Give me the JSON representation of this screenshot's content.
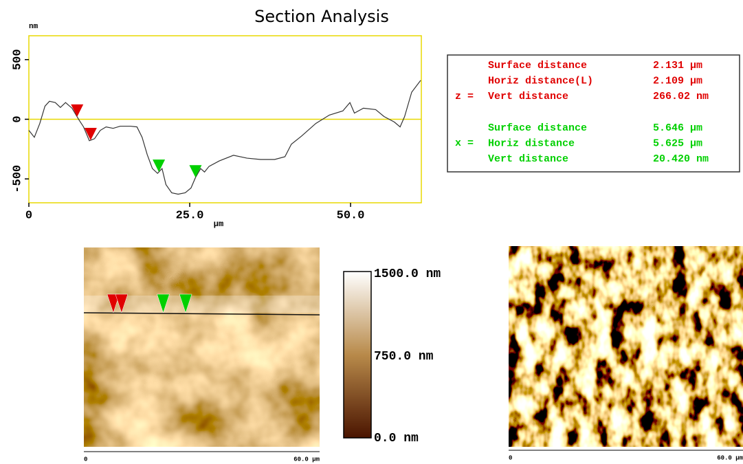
{
  "chart_data": {
    "type": "line",
    "title": "Section Analysis",
    "y_unit": "nm",
    "x_label": "µm",
    "xlim": [
      0,
      61
    ],
    "ylim": [
      -700,
      700
    ],
    "xticks": [
      0,
      {
        "value": 25,
        "label": "25.0"
      },
      {
        "value": 50,
        "label": "50.0"
      }
    ],
    "yticks": [
      -500,
      0,
      500
    ],
    "frame_color": "#e8d800",
    "zero_line_color": "#e8d800",
    "series": [
      {
        "color": "#333333",
        "x": [
          0,
          0.85,
          1.7,
          2.5,
          3.2,
          4.1,
          4.9,
          5.7,
          6.7,
          7.8,
          8.5,
          9.4,
          10.2,
          11.1,
          12.0,
          13.1,
          14.2,
          15.8,
          16.8,
          17.6,
          18.4,
          19.2,
          20.0,
          20.7,
          21.3,
          22.2,
          23.2,
          24.3,
          25.2,
          25.9,
          26.7,
          27.3,
          28.0,
          29.6,
          31.8,
          33.9,
          36.0,
          38.2,
          39.8,
          40.8,
          42.4,
          44.6,
          46.7,
          48.8,
          49.9,
          50.6,
          52.0,
          53.9,
          55.2,
          56.8,
          57.7,
          58.4,
          59.5,
          60.9
        ],
        "values": [
          -93,
          -151,
          -35,
          110,
          151,
          140,
          99,
          140,
          93,
          -6,
          -64,
          -180,
          -163,
          -93,
          -64,
          -76,
          -58,
          -58,
          -64,
          -151,
          -297,
          -413,
          -453,
          -413,
          -547,
          -616,
          -628,
          -616,
          -576,
          -488,
          -413,
          -442,
          -395,
          -349,
          -302,
          -326,
          -337,
          -337,
          -314,
          -209,
          -140,
          -35,
          35,
          70,
          140,
          52,
          93,
          81,
          23,
          -23,
          -64,
          23,
          227,
          326
        ]
      }
    ],
    "cursors": [
      {
        "x": 7.5,
        "color": "#e00000"
      },
      {
        "x": 9.6,
        "color": "#e00000"
      },
      {
        "x": 20.2,
        "color": "#00d000"
      },
      {
        "x": 25.9,
        "color": "#00d000"
      }
    ]
  },
  "measurements": [
    {
      "symbol": "z =",
      "color": "#e00000",
      "rows": [
        {
          "name": "Surface distance",
          "value": "2.131 µm"
        },
        {
          "name": "Horiz distance(L)",
          "value": "2.109 µm"
        },
        {
          "name": "Vert distance",
          "value": "266.02 nm"
        }
      ]
    },
    {
      "symbol": "x =",
      "color": "#00d000",
      "rows": [
        {
          "name": "Surface distance",
          "value": "5.646 µm"
        },
        {
          "name": "Horiz distance",
          "value": "5.625 µm"
        },
        {
          "name": "Vert distance",
          "value": "20.420 nm"
        }
      ]
    }
  ],
  "height_image": {
    "scale_labels": [
      "1500.0 nm",
      "750.0 nm",
      "0.0 nm"
    ],
    "axis_labels": [
      "0",
      "60.0 µm"
    ]
  },
  "phase_image": {
    "axis_labels": [
      "0",
      "60.0 µm"
    ]
  }
}
